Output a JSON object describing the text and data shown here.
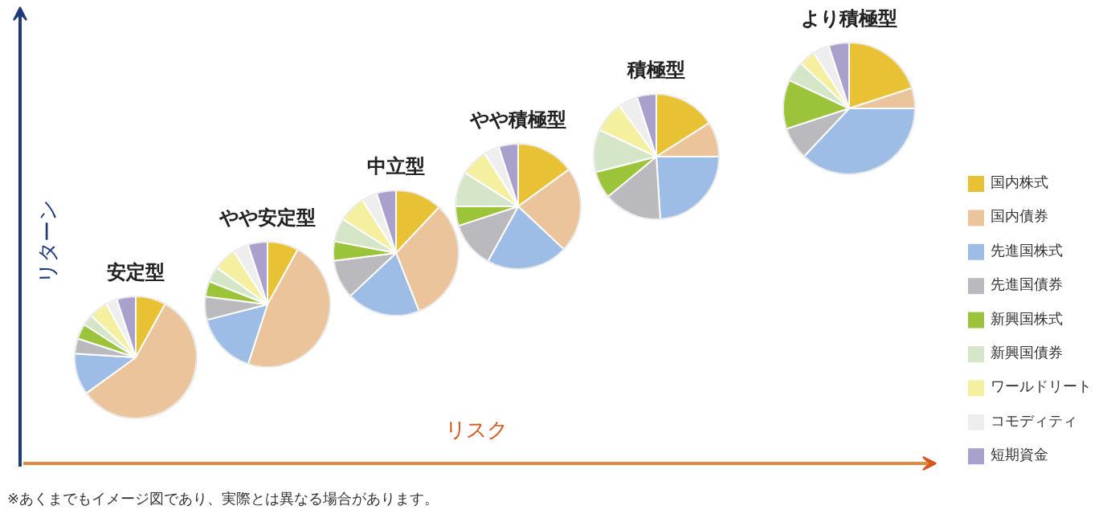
{
  "chart_data": {
    "type": "pie",
    "xlabel": "リスク",
    "ylabel": "リターン",
    "legend": "right",
    "annotations": [
      "※あくまでもイメージ図であり、実際とは異なる場合があります。"
    ],
    "categories": [
      "国内株式",
      "国内債券",
      "先進国株式",
      "先進国債券",
      "新興国株式",
      "新興国債券",
      "ワールドリート",
      "コモディティ",
      "短期資金"
    ],
    "colors": [
      "#e8c234",
      "#ecc49c",
      "#9dbde6",
      "#b9b9be",
      "#9cc43a",
      "#d5e6c8",
      "#f5f0a0",
      "#eeeeee",
      "#a9a0cc"
    ],
    "series": [
      {
        "name": "安定型",
        "values": [
          8,
          57,
          11,
          4,
          4,
          3,
          5,
          3,
          5
        ]
      },
      {
        "name": "やや安定型",
        "values": [
          8,
          47,
          16,
          6,
          4,
          4,
          6,
          4,
          5
        ]
      },
      {
        "name": "中立型",
        "values": [
          12,
          32,
          19,
          10,
          5,
          6,
          7,
          4,
          5
        ]
      },
      {
        "name": "やや積極型",
        "values": [
          15,
          22,
          21,
          12,
          5,
          9,
          7,
          4,
          5
        ]
      },
      {
        "name": "積極型",
        "values": [
          16,
          9,
          24,
          15,
          7,
          11,
          8,
          5,
          5
        ]
      },
      {
        "name": "より積極型",
        "values": [
          20,
          5,
          37,
          8,
          12,
          5,
          4,
          4,
          5
        ]
      }
    ]
  }
}
